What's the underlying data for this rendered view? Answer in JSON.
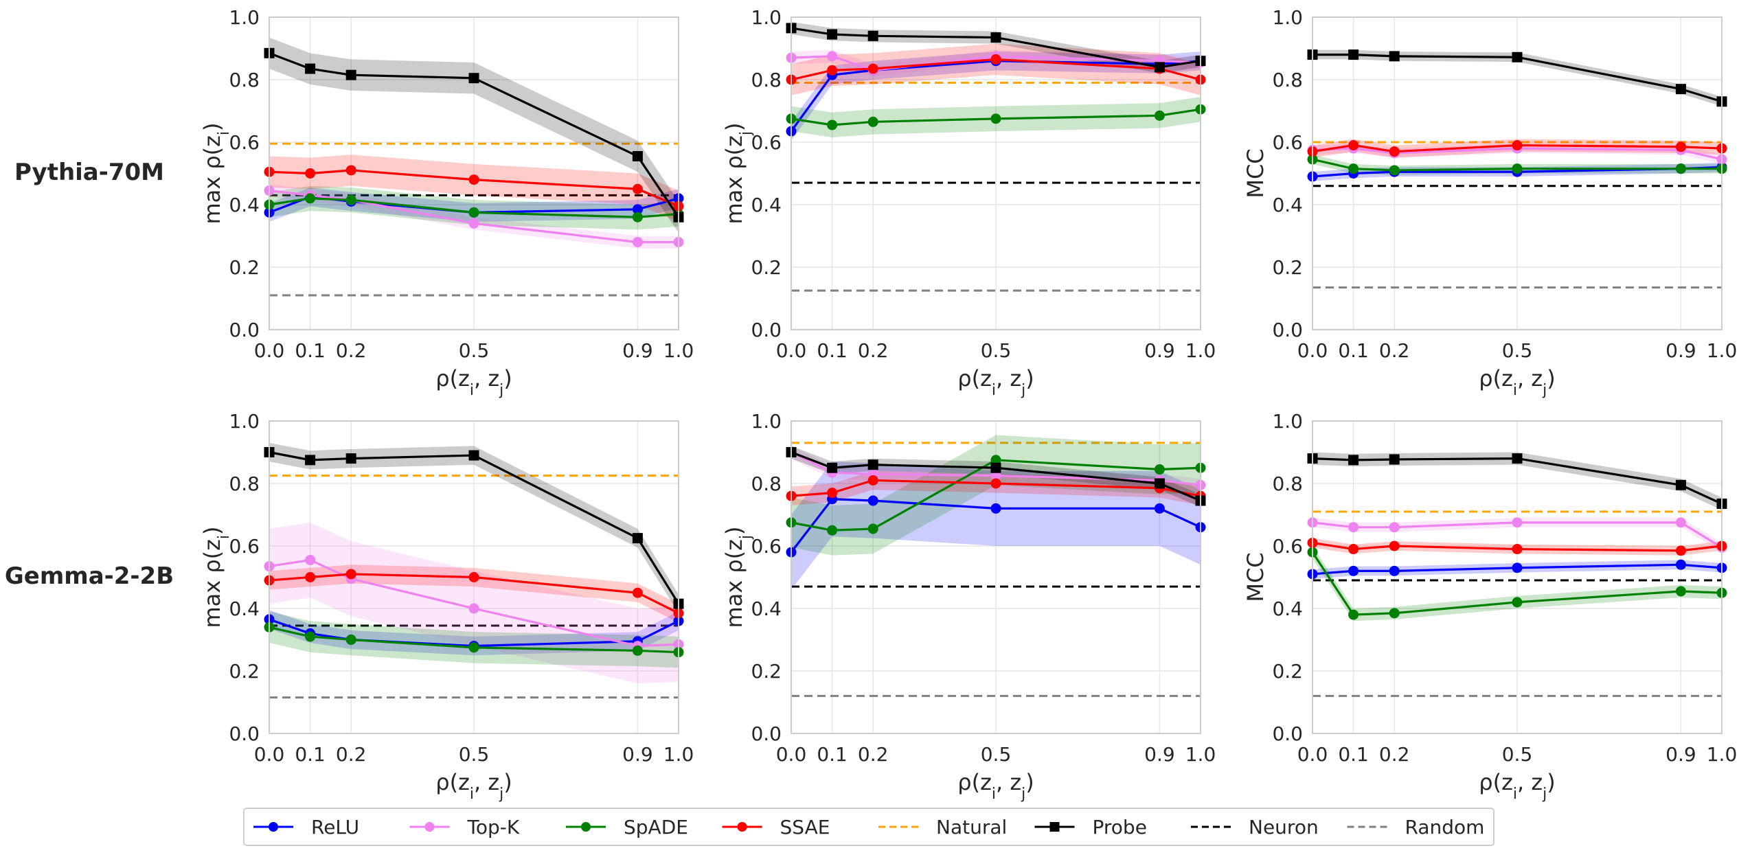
{
  "row_labels": [
    "Pythia-70M",
    "Gemma-2-2B"
  ],
  "legend": [
    {
      "key": "relu",
      "label": "ReLU",
      "color": "#0000ff",
      "marker": "circle",
      "dash": false
    },
    {
      "key": "topk",
      "label": "Top-K",
      "color": "#ee82ee",
      "marker": "circle",
      "dash": false
    },
    {
      "key": "spade",
      "label": "SpADE",
      "color": "#008000",
      "marker": "circle",
      "dash": false
    },
    {
      "key": "ssae",
      "label": "SSAE",
      "color": "#ff0000",
      "marker": "circle",
      "dash": false
    },
    {
      "key": "natural",
      "label": "Natural",
      "color": "#ffa500",
      "marker": "none",
      "dash": true
    },
    {
      "key": "probe",
      "label": "Probe",
      "color": "#000000",
      "marker": "square",
      "dash": false
    },
    {
      "key": "neuron",
      "label": "Neuron",
      "color": "#000000",
      "marker": "none",
      "dash": true
    },
    {
      "key": "random",
      "label": "Random",
      "color": "#808080",
      "marker": "none",
      "dash": true
    }
  ],
  "chart_data": [
    {
      "type": "line",
      "row": 0,
      "col": 0,
      "model": "Pythia-70M",
      "xlabel": "ρ(z_i, z_j)",
      "ylabel": "max ρ(z_i)",
      "x": [
        0.0,
        0.1,
        0.2,
        0.5,
        0.9,
        1.0
      ],
      "xticks": [
        "0.0",
        "0.1",
        "0.2",
        "0.5",
        "0.9",
        "1.0"
      ],
      "ylim": [
        0,
        1
      ],
      "yticks": [
        "0.0",
        "0.2",
        "0.4",
        "0.6",
        "0.8",
        "1.0"
      ],
      "series": [
        {
          "key": "relu",
          "values": [
            0.375,
            0.425,
            0.41,
            0.375,
            0.385,
            0.42
          ],
          "band": 0.03
        },
        {
          "key": "topk",
          "values": [
            0.445,
            0.43,
            0.415,
            0.34,
            0.28,
            0.28
          ],
          "band": 0.02
        },
        {
          "key": "spade",
          "values": [
            0.4,
            0.42,
            0.415,
            0.375,
            0.36,
            0.37
          ],
          "band": 0.04
        },
        {
          "key": "ssae",
          "values": [
            0.505,
            0.5,
            0.51,
            0.48,
            0.45,
            0.395
          ],
          "band": 0.05
        },
        {
          "key": "probe",
          "values": [
            0.885,
            0.835,
            0.815,
            0.805,
            0.555,
            0.36
          ],
          "band": 0.05
        }
      ],
      "hlines": [
        {
          "key": "natural",
          "y": 0.595
        },
        {
          "key": "neuron",
          "y": 0.43
        },
        {
          "key": "random",
          "y": 0.11
        }
      ]
    },
    {
      "type": "line",
      "row": 0,
      "col": 1,
      "model": "Pythia-70M",
      "xlabel": "ρ(z_i, z_j)",
      "ylabel": "max ρ(z_j)",
      "x": [
        0.0,
        0.1,
        0.2,
        0.5,
        0.9,
        1.0
      ],
      "xticks": [
        "0.0",
        "0.1",
        "0.2",
        "0.5",
        "0.9",
        "1.0"
      ],
      "ylim": [
        0,
        1
      ],
      "yticks": [
        "0.0",
        "0.2",
        "0.4",
        "0.6",
        "0.8",
        "1.0"
      ],
      "series": [
        {
          "key": "relu",
          "values": [
            0.635,
            0.815,
            0.83,
            0.86,
            0.85,
            0.86
          ],
          "band": 0.03
        },
        {
          "key": "topk",
          "values": [
            0.87,
            0.875,
            0.83,
            0.875,
            0.86,
            0.855
          ],
          "band": 0.02
        },
        {
          "key": "spade",
          "values": [
            0.675,
            0.655,
            0.665,
            0.675,
            0.685,
            0.705
          ],
          "band": 0.04
        },
        {
          "key": "ssae",
          "values": [
            0.8,
            0.83,
            0.835,
            0.865,
            0.835,
            0.8
          ],
          "band": 0.05
        },
        {
          "key": "probe",
          "values": [
            0.965,
            0.945,
            0.94,
            0.935,
            0.84,
            0.86
          ],
          "band": 0.02
        }
      ],
      "hlines": [
        {
          "key": "natural",
          "y": 0.79
        },
        {
          "key": "neuron",
          "y": 0.47
        },
        {
          "key": "random",
          "y": 0.125
        }
      ]
    },
    {
      "type": "line",
      "row": 0,
      "col": 2,
      "model": "Pythia-70M",
      "xlabel": "ρ(z_i, z_j)",
      "ylabel": "MCC",
      "x": [
        0.0,
        0.1,
        0.2,
        0.5,
        0.9,
        1.0
      ],
      "xticks": [
        "0.0",
        "0.1",
        "0.2",
        "0.5",
        "0.9",
        "1.0"
      ],
      "ylim": [
        0,
        1
      ],
      "yticks": [
        "0.0",
        "0.2",
        "0.4",
        "0.6",
        "0.8",
        "1.0"
      ],
      "series": [
        {
          "key": "relu",
          "values": [
            0.49,
            0.5,
            0.505,
            0.505,
            0.515,
            0.52
          ],
          "band": 0.015
        },
        {
          "key": "topk",
          "values": [
            0.575,
            0.58,
            0.565,
            0.58,
            0.575,
            0.545
          ],
          "band": 0.015
        },
        {
          "key": "spade",
          "values": [
            0.545,
            0.515,
            0.51,
            0.515,
            0.515,
            0.515
          ],
          "band": 0.015
        },
        {
          "key": "ssae",
          "values": [
            0.57,
            0.59,
            0.57,
            0.59,
            0.585,
            0.58
          ],
          "band": 0.02
        },
        {
          "key": "probe",
          "values": [
            0.88,
            0.88,
            0.875,
            0.872,
            0.77,
            0.73
          ],
          "band": 0.015
        }
      ],
      "hlines": [
        {
          "key": "natural",
          "y": 0.6
        },
        {
          "key": "neuron",
          "y": 0.46
        },
        {
          "key": "random",
          "y": 0.135
        }
      ]
    },
    {
      "type": "line",
      "row": 1,
      "col": 0,
      "model": "Gemma-2-2B",
      "xlabel": "ρ(z_i, z_j)",
      "ylabel": "max ρ(z_i)",
      "x": [
        0.0,
        0.1,
        0.2,
        0.5,
        0.9,
        1.0
      ],
      "xticks": [
        "0.0",
        "0.1",
        "0.2",
        "0.5",
        "0.9",
        "1.0"
      ],
      "ylim": [
        0,
        1
      ],
      "yticks": [
        "0.0",
        "0.2",
        "0.4",
        "0.6",
        "0.8",
        "1.0"
      ],
      "series": [
        {
          "key": "relu",
          "values": [
            0.365,
            0.32,
            0.3,
            0.28,
            0.295,
            0.36
          ],
          "band": 0.03
        },
        {
          "key": "topk",
          "values": [
            0.535,
            0.555,
            0.495,
            0.4,
            0.28,
            0.285
          ],
          "band": 0.12
        },
        {
          "key": "spade",
          "values": [
            0.34,
            0.31,
            0.3,
            0.275,
            0.265,
            0.26
          ],
          "band": 0.05
        },
        {
          "key": "ssae",
          "values": [
            0.49,
            0.5,
            0.51,
            0.5,
            0.45,
            0.385
          ],
          "band": 0.03
        },
        {
          "key": "probe",
          "values": [
            0.9,
            0.875,
            0.88,
            0.89,
            0.625,
            0.415
          ],
          "band": 0.03
        }
      ],
      "hlines": [
        {
          "key": "natural",
          "y": 0.825
        },
        {
          "key": "neuron",
          "y": 0.345
        },
        {
          "key": "random",
          "y": 0.115
        }
      ]
    },
    {
      "type": "line",
      "row": 1,
      "col": 1,
      "model": "Gemma-2-2B",
      "xlabel": "ρ(z_i, z_j)",
      "ylabel": "max ρ(z_j)",
      "x": [
        0.0,
        0.1,
        0.2,
        0.5,
        0.9,
        1.0
      ],
      "xticks": [
        "0.0",
        "0.1",
        "0.2",
        "0.5",
        "0.9",
        "1.0"
      ],
      "ylim": [
        0,
        1
      ],
      "yticks": [
        "0.0",
        "0.2",
        "0.4",
        "0.6",
        "0.8",
        "1.0"
      ],
      "series": [
        {
          "key": "relu",
          "values": [
            0.58,
            0.75,
            0.745,
            0.72,
            0.72,
            0.66
          ],
          "band": 0.12
        },
        {
          "key": "topk",
          "values": [
            0.9,
            0.835,
            0.83,
            0.825,
            0.81,
            0.795
          ],
          "band": 0.02
        },
        {
          "key": "spade",
          "values": [
            0.675,
            0.65,
            0.655,
            0.875,
            0.845,
            0.85
          ],
          "band": 0.08
        },
        {
          "key": "ssae",
          "values": [
            0.76,
            0.77,
            0.81,
            0.8,
            0.785,
            0.76
          ],
          "band": 0.03
        },
        {
          "key": "probe",
          "values": [
            0.9,
            0.85,
            0.86,
            0.85,
            0.8,
            0.745
          ],
          "band": 0.02
        }
      ],
      "hlines": [
        {
          "key": "natural",
          "y": 0.93
        },
        {
          "key": "neuron",
          "y": 0.47
        },
        {
          "key": "random",
          "y": 0.12
        }
      ]
    },
    {
      "type": "line",
      "row": 1,
      "col": 2,
      "model": "Gemma-2-2B",
      "xlabel": "ρ(z_i, z_j)",
      "ylabel": "MCC",
      "x": [
        0.0,
        0.1,
        0.2,
        0.5,
        0.9,
        1.0
      ],
      "xticks": [
        "0.0",
        "0.1",
        "0.2",
        "0.5",
        "0.9",
        "1.0"
      ],
      "ylim": [
        0,
        1
      ],
      "yticks": [
        "0.0",
        "0.2",
        "0.4",
        "0.6",
        "0.8",
        "1.0"
      ],
      "series": [
        {
          "key": "relu",
          "values": [
            0.51,
            0.52,
            0.52,
            0.53,
            0.54,
            0.53
          ],
          "band": 0.015
        },
        {
          "key": "topk",
          "values": [
            0.675,
            0.66,
            0.66,
            0.675,
            0.675,
            0.595
          ],
          "band": 0.015
        },
        {
          "key": "spade",
          "values": [
            0.58,
            0.38,
            0.385,
            0.42,
            0.455,
            0.45
          ],
          "band": 0.02
        },
        {
          "key": "ssae",
          "values": [
            0.61,
            0.59,
            0.6,
            0.59,
            0.585,
            0.6
          ],
          "band": 0.015
        },
        {
          "key": "probe",
          "values": [
            0.88,
            0.875,
            0.877,
            0.88,
            0.795,
            0.735
          ],
          "band": 0.02
        }
      ],
      "hlines": [
        {
          "key": "natural",
          "y": 0.71
        },
        {
          "key": "neuron",
          "y": 0.49
        },
        {
          "key": "random",
          "y": 0.12
        }
      ]
    }
  ]
}
